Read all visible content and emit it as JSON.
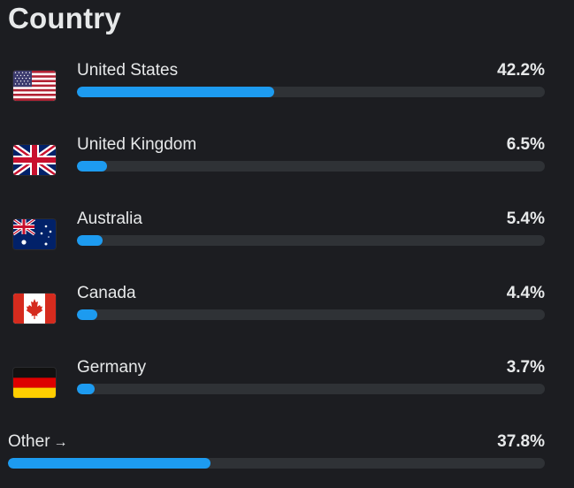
{
  "title": "Country",
  "accent_color": "#1d9bf0",
  "track_color": "#2f3236",
  "countries": [
    {
      "name": "United States",
      "percent_label": "42.2%",
      "value": 42.2,
      "flag_icon": "us-flag-icon"
    },
    {
      "name": "United Kingdom",
      "percent_label": "6.5%",
      "value": 6.5,
      "flag_icon": "uk-flag-icon"
    },
    {
      "name": "Australia",
      "percent_label": "5.4%",
      "value": 5.4,
      "flag_icon": "australia-flag-icon"
    },
    {
      "name": "Canada",
      "percent_label": "4.4%",
      "value": 4.4,
      "flag_icon": "canada-flag-icon"
    },
    {
      "name": "Germany",
      "percent_label": "3.7%",
      "value": 3.7,
      "flag_icon": "germany-flag-icon"
    }
  ],
  "other": {
    "label": "Other",
    "arrow": "→",
    "percent_label": "37.8%",
    "value": 37.8
  }
}
